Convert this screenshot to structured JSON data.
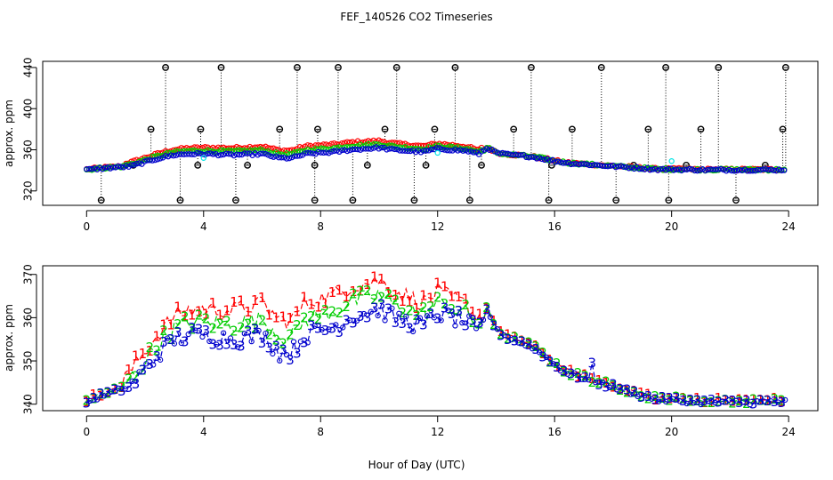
{
  "title": "FEF_140526  CO2 Timeseries",
  "xlabel": "Hour of Day (UTC)",
  "colors": {
    "s1": "#ff0000",
    "s2": "#00cd00",
    "s3": "#0000cd",
    "s4": "#00e5e5",
    "flag": "#000000"
  },
  "chart_data": [
    {
      "type": "scatter",
      "name": "top-panel",
      "ylabel": "approx. ppm",
      "xlim": [
        -1.5,
        25
      ],
      "ylim": [
        306,
        446
      ],
      "xticks": [
        "0",
        "4",
        "8",
        "12",
        "16",
        "20",
        "24"
      ],
      "yticks": [
        "320",
        "360",
        "400",
        "440"
      ],
      "ytick_values": [
        320,
        360,
        400,
        440
      ],
      "flag_levels": [
        311,
        345,
        380,
        440
      ],
      "flag_hours": [
        0.5,
        1.6,
        2.2,
        2.7,
        3.2,
        3.8,
        3.9,
        4.6,
        5.1,
        5.5,
        6.6,
        7.2,
        7.8,
        7.8,
        7.9,
        8.6,
        9.1,
        9.6,
        10.2,
        10.6,
        11.2,
        11.6,
        11.9,
        12.6,
        13.1,
        13.5,
        14.6,
        15.2,
        15.8,
        15.9,
        16.6,
        17.6,
        18.1,
        18.7,
        19.2,
        19.8,
        19.9,
        20.5,
        21.0,
        21.6,
        22.2,
        23.2,
        23.8,
        23.9
      ],
      "series": [
        {
          "name": "1",
          "color": "#ff0000"
        },
        {
          "name": "2",
          "color": "#00cd00"
        },
        {
          "name": "3",
          "color": "#0000cd"
        },
        {
          "name": "4",
          "color": "#00e5e5"
        }
      ]
    },
    {
      "type": "line",
      "name": "bottom-panel",
      "ylabel": "approx. ppm",
      "xlim": [
        -1.5,
        25
      ],
      "ylim": [
        338.5,
        372
      ],
      "xticks": [
        "0",
        "4",
        "8",
        "12",
        "16",
        "20",
        "24"
      ],
      "yticks": [
        "340",
        "350",
        "360",
        "370"
      ],
      "ytick_values": [
        340,
        350,
        360,
        370
      ],
      "series": [
        {
          "name": "1",
          "label": "1",
          "color": "#ff0000"
        },
        {
          "name": "2",
          "label": "2",
          "color": "#00cd00"
        },
        {
          "name": "3",
          "label": "3",
          "color": "#0000cd"
        }
      ],
      "baseline_knots": [
        [
          0,
          340.5
        ],
        [
          0.5,
          342
        ],
        [
          1.0,
          343
        ],
        [
          1.5,
          344
        ],
        [
          2.0,
          348
        ],
        [
          2.5,
          352
        ],
        [
          3.0,
          355
        ],
        [
          3.5,
          356
        ],
        [
          4.0,
          356
        ],
        [
          5.0,
          355
        ],
        [
          6.0,
          356
        ],
        [
          6.6,
          352
        ],
        [
          7.0,
          352
        ],
        [
          7.5,
          356
        ],
        [
          8.0,
          357
        ],
        [
          8.5,
          358
        ],
        [
          9.0,
          360
        ],
        [
          9.5,
          361
        ],
        [
          10.0,
          362
        ],
        [
          10.5,
          360
        ],
        [
          11.0,
          359
        ],
        [
          11.5,
          358
        ],
        [
          12.0,
          361
        ],
        [
          12.5,
          360
        ],
        [
          13.0,
          359
        ],
        [
          13.4,
          356
        ],
        [
          13.7,
          362
        ],
        [
          14.0,
          357
        ],
        [
          14.5,
          355
        ],
        [
          15.0,
          354
        ],
        [
          15.5,
          352
        ],
        [
          16.0,
          349
        ],
        [
          16.5,
          347
        ],
        [
          17.0,
          346
        ],
        [
          17.5,
          345
        ],
        [
          18.0,
          344
        ],
        [
          18.5,
          343
        ],
        [
          19.0,
          342
        ],
        [
          19.5,
          341
        ],
        [
          20.0,
          341
        ],
        [
          21.0,
          340.5
        ],
        [
          22.0,
          340.5
        ],
        [
          23.0,
          340.5
        ],
        [
          23.9,
          340.5
        ]
      ]
    }
  ]
}
